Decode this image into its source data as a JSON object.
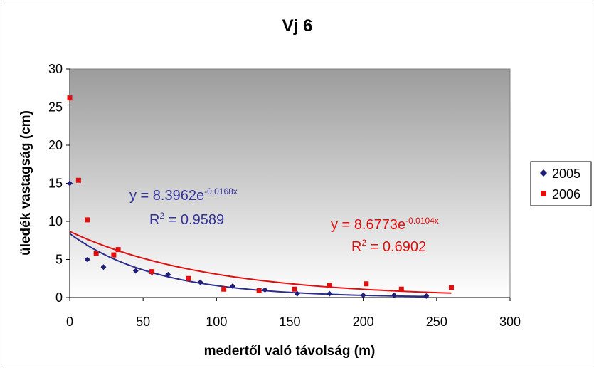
{
  "chart_data": {
    "type": "scatter",
    "title": "Vj 6",
    "xlabel": "medertől való távolság (m)",
    "ylabel": "üledék vastagság (cm)",
    "xlim": [
      0,
      300
    ],
    "ylim": [
      0,
      30
    ],
    "x_ticks": [
      "0",
      "50",
      "100",
      "150",
      "200",
      "250",
      "300"
    ],
    "y_ticks": [
      "0",
      "5",
      "10",
      "15",
      "20",
      "25",
      "30"
    ],
    "legend_position": "right",
    "series": [
      {
        "name": "2005",
        "color": "#1f1f7a",
        "marker": "diamond",
        "points": [
          [
            0,
            15.0
          ],
          [
            12,
            5.0
          ],
          [
            23,
            4.0
          ],
          [
            45,
            3.5
          ],
          [
            56,
            3.3
          ],
          [
            67,
            3.0
          ],
          [
            89,
            2.0
          ],
          [
            111,
            1.5
          ],
          [
            133,
            1.0
          ],
          [
            155,
            0.5
          ],
          [
            177,
            0.5
          ],
          [
            200,
            0.3
          ],
          [
            221,
            0.3
          ],
          [
            243,
            0.2
          ]
        ],
        "trendline": {
          "type": "exponential",
          "a": 8.3962,
          "b": -0.0168,
          "x_range": [
            0,
            243
          ],
          "color": "#2e2e8c",
          "equation_text": "y = 8.3962e",
          "exponent_text": "-0.0168x",
          "r2_prefix": "R",
          "r2_sup": "2",
          "r2_text": " = 0.9589"
        }
      },
      {
        "name": "2006",
        "color": "#e01010",
        "marker": "square",
        "points": [
          [
            0,
            26.2
          ],
          [
            6,
            15.4
          ],
          [
            12,
            10.2
          ],
          [
            18,
            5.8
          ],
          [
            30,
            5.6
          ],
          [
            33,
            6.3
          ],
          [
            56,
            3.4
          ],
          [
            81,
            2.5
          ],
          [
            105,
            1.1
          ],
          [
            129,
            0.9
          ],
          [
            153,
            1.1
          ],
          [
            177,
            1.6
          ],
          [
            202,
            1.8
          ],
          [
            226,
            1.1
          ],
          [
            260,
            1.3
          ]
        ],
        "trendline": {
          "type": "exponential",
          "a": 8.6773,
          "b": -0.0104,
          "x_range": [
            0,
            260
          ],
          "color": "#e01010",
          "equation_text": "y = 8.6773e",
          "exponent_text": "-0.0104x",
          "r2_prefix": "R",
          "r2_sup": "2",
          "r2_text": " = 0.6902"
        }
      }
    ]
  }
}
